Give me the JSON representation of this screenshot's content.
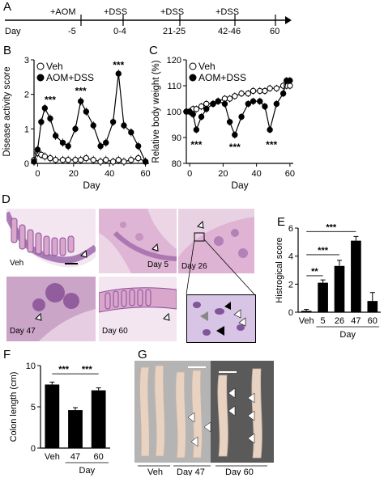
{
  "panels": {
    "A": {
      "label": "A",
      "day_label": "Day",
      "treatments": [
        "+AOM",
        "+DSS",
        "+DSS",
        "+DSS"
      ],
      "days": [
        "-5",
        "0-4",
        "21-25",
        "42-46",
        "60"
      ]
    },
    "B": {
      "label": "B"
    },
    "C": {
      "label": "C"
    },
    "D": {
      "label": "D",
      "image_labels": [
        "Veh",
        "Day 5",
        "Day 26",
        "Day 47",
        "Day 60"
      ]
    },
    "E": {
      "label": "E"
    },
    "F": {
      "label": "F"
    },
    "G": {
      "label": "G",
      "group_labels": [
        "Veh",
        "Day 47",
        "Day 60"
      ]
    }
  },
  "colors": {
    "black": "#000000",
    "white": "#ffffff",
    "he_pink": "#d9a6cc",
    "he_purple": "#8a4f9c",
    "colon_tissue": "#e8d2c2",
    "photo_bg": "#5a5a5a"
  },
  "chart_data": [
    {
      "id": "B",
      "type": "line",
      "ylabel": "Disease activity score",
      "xlabel": "Day",
      "xlim": [
        -2,
        62
      ],
      "ylim": [
        0,
        3
      ],
      "xticks": [
        0,
        20,
        40,
        60
      ],
      "yticks": [
        0,
        1,
        2,
        3
      ],
      "legend_position": "top-left",
      "series": [
        {
          "name": "Veh",
          "marker": "open-circle",
          "x": [
            -2,
            0,
            2,
            4,
            7,
            10,
            14,
            17,
            21,
            24,
            27,
            31,
            35,
            38,
            42,
            45,
            48,
            52,
            56,
            60
          ],
          "y": [
            0.1,
            0.3,
            0.25,
            0.2,
            0.15,
            0.1,
            0.1,
            0.1,
            0.1,
            0.1,
            0.15,
            0.1,
            0.05,
            0.1,
            0.05,
            0.1,
            0.05,
            0.1,
            0.15,
            0.05
          ]
        },
        {
          "name": "AOM+DSS",
          "marker": "filled-circle",
          "x": [
            -2,
            0,
            2,
            4,
            7,
            10,
            14,
            17,
            21,
            24,
            27,
            31,
            35,
            38,
            42,
            45,
            48,
            52,
            56,
            60
          ],
          "y": [
            0.05,
            0.4,
            1.2,
            1.6,
            1.3,
            0.8,
            0.6,
            0.5,
            1.0,
            1.8,
            1.5,
            1.1,
            0.5,
            0.6,
            1.2,
            2.6,
            1.1,
            0.9,
            0.5,
            0.05
          ]
        }
      ],
      "annotations": [
        "***",
        "***",
        "***"
      ]
    },
    {
      "id": "C",
      "type": "line",
      "ylabel": "Relative body weight (%)",
      "xlabel": "Day",
      "xlim": [
        -2,
        62
      ],
      "ylim": [
        80,
        120
      ],
      "xticks": [
        0,
        20,
        40,
        60
      ],
      "yticks": [
        80,
        90,
        100,
        110,
        120
      ],
      "legend_position": "top-left",
      "series": [
        {
          "name": "Veh",
          "marker": "open-circle",
          "x": [
            -2,
            0,
            2,
            4,
            7,
            10,
            14,
            17,
            21,
            24,
            27,
            31,
            35,
            38,
            42,
            45,
            48,
            52,
            56,
            58,
            60
          ],
          "y": [
            100,
            100,
            101,
            101,
            102,
            103,
            103,
            104,
            105,
            105,
            106,
            107,
            107,
            108,
            108,
            108,
            109,
            109,
            110,
            110,
            110
          ]
        },
        {
          "name": "AOM+DSS",
          "marker": "filled-circle",
          "x": [
            -2,
            0,
            2,
            4,
            7,
            10,
            14,
            17,
            21,
            24,
            27,
            31,
            35,
            38,
            42,
            45,
            48,
            52,
            56,
            58,
            60
          ],
          "y": [
            100,
            100,
            99,
            93,
            98,
            101,
            103,
            104,
            103,
            96,
            91,
            98,
            103,
            104,
            104,
            102,
            93,
            103,
            107,
            112,
            112
          ]
        }
      ],
      "annotations": [
        "***",
        "***",
        "***"
      ]
    },
    {
      "id": "E",
      "type": "bar",
      "ylabel": "Histrogical score",
      "xlabel": "Day",
      "ylim": [
        0,
        6
      ],
      "yticks": [
        0,
        2,
        4,
        6
      ],
      "categories": [
        "Veh",
        "5",
        "26",
        "47",
        "60"
      ],
      "values": [
        0.1,
        2.1,
        3.3,
        5.1,
        0.8
      ],
      "errors": [
        0.1,
        0.2,
        0.4,
        0.3,
        0.6
      ],
      "annotations": [
        "**",
        "***",
        "***",
        "***"
      ]
    },
    {
      "id": "F",
      "type": "bar",
      "ylabel": "Colon length (cm)",
      "xlabel": "Day",
      "ylim": [
        0,
        10
      ],
      "yticks": [
        0,
        5,
        10
      ],
      "categories": [
        "Veh",
        "47",
        "60"
      ],
      "values": [
        7.7,
        4.6,
        7.0
      ],
      "errors": [
        0.3,
        0.3,
        0.3
      ],
      "annotations": [
        "***",
        "***"
      ]
    }
  ]
}
